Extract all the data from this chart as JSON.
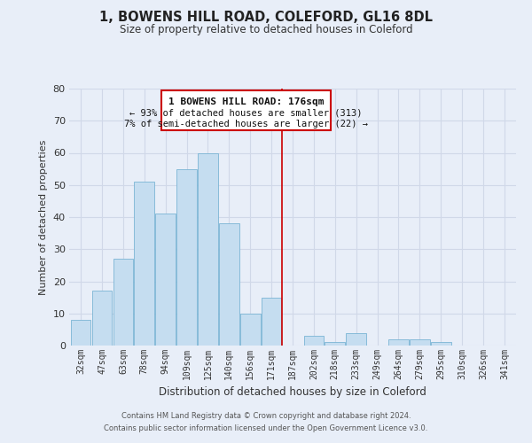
{
  "title": "1, BOWENS HILL ROAD, COLEFORD, GL16 8DL",
  "subtitle": "Size of property relative to detached houses in Coleford",
  "xlabel": "Distribution of detached houses by size in Coleford",
  "ylabel": "Number of detached properties",
  "bar_labels": [
    "32sqm",
    "47sqm",
    "63sqm",
    "78sqm",
    "94sqm",
    "109sqm",
    "125sqm",
    "140sqm",
    "156sqm",
    "171sqm",
    "187sqm",
    "202sqm",
    "218sqm",
    "233sqm",
    "249sqm",
    "264sqm",
    "279sqm",
    "295sqm",
    "310sqm",
    "326sqm",
    "341sqm"
  ],
  "bar_heights": [
    8,
    17,
    27,
    51,
    41,
    55,
    60,
    38,
    10,
    15,
    0,
    3,
    1,
    4,
    0,
    2,
    2,
    1,
    0,
    0,
    0
  ],
  "bar_color": "#c5ddf0",
  "bar_edge_color": "#7ab4d4",
  "vline_color": "#cc0000",
  "annotation_title": "1 BOWENS HILL ROAD: 176sqm",
  "annotation_line1": "← 93% of detached houses are smaller (313)",
  "annotation_line2": "7% of semi-detached houses are larger (22) →",
  "annotation_box_color": "#ffffff",
  "annotation_box_edge": "#cc0000",
  "grid_color": "#d0d8e8",
  "background_color": "#e8eef8",
  "ylim": [
    0,
    80
  ],
  "yticks": [
    0,
    10,
    20,
    30,
    40,
    50,
    60,
    70,
    80
  ],
  "footer_line1": "Contains HM Land Registry data © Crown copyright and database right 2024.",
  "footer_line2": "Contains public sector information licensed under the Open Government Licence v3.0."
}
